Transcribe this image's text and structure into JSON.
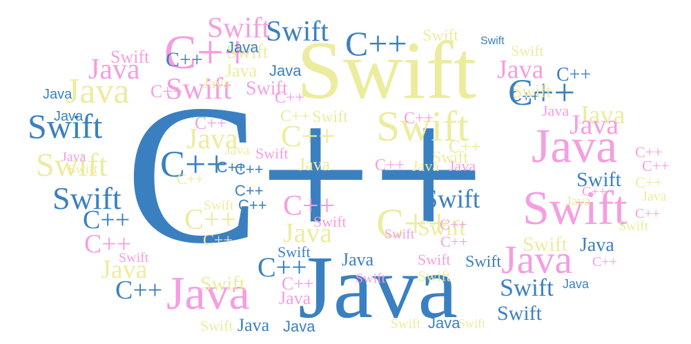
{
  "words": {
    "cpp": "C++",
    "java": "Java",
    "swift": "Swift"
  },
  "colors": {
    "blue": "#3a80c1",
    "pink": "#f59ee0",
    "yellow": "#ecec9f",
    "pale_yellow": "#f1f1c0",
    "background": "#ffffff"
  }
}
